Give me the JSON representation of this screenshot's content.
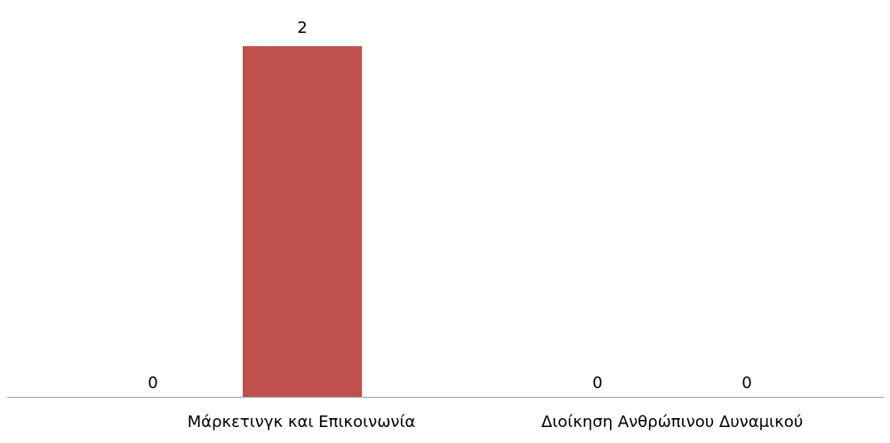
{
  "chart_data": {
    "type": "bar",
    "categories": [
      "Μάρκετινγκ και Επικοινωνία",
      "Διοίκηση Ανθρώπινου Δυναμικού"
    ],
    "series": [
      {
        "values": [
          0,
          0
        ],
        "color": "#4F81BD"
      },
      {
        "values": [
          2,
          0
        ],
        "color": "#C0504D"
      }
    ],
    "ylim": [
      0,
      2
    ],
    "title": "",
    "xlabel": "",
    "ylabel": "",
    "grid": false,
    "legend": "none",
    "data_labels": true
  },
  "colors": {
    "axis": "#A6A6A6",
    "label_text": "#000000"
  }
}
